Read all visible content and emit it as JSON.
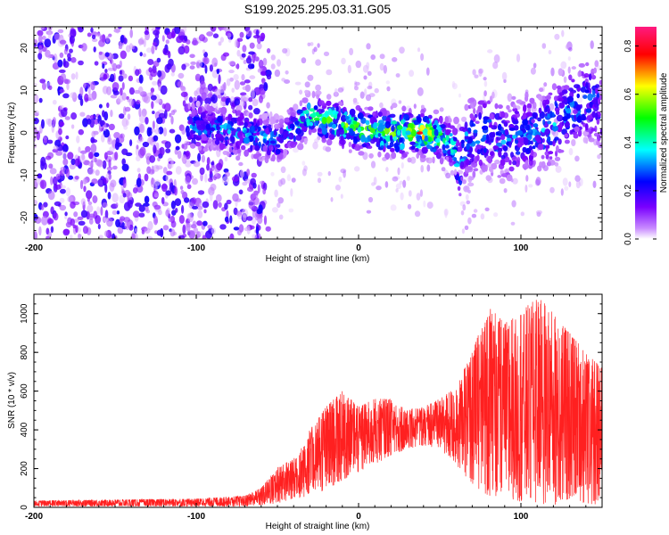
{
  "title": "S199.2025.295.03.31.G05",
  "chart_data": [
    {
      "type": "heatmap",
      "xlabel": "Height of straight line (km)",
      "ylabel": "Frequency (Hz)",
      "xlim": [
        -200,
        150
      ],
      "ylim": [
        -25,
        25
      ],
      "xticks": [
        -200,
        -100,
        0,
        100
      ],
      "yticks": [
        -20,
        -10,
        0,
        10,
        20
      ],
      "colorbar": {
        "label": "Normalized spectral amplitude",
        "range": [
          0,
          0.88
        ],
        "ticks": [
          "0.0",
          "0.2",
          "0.4",
          "0.6",
          "0.8"
        ],
        "colors": [
          "#ffffff",
          "#7a00ff",
          "#0000ff",
          "#00ffff",
          "#00ff00",
          "#ffff00",
          "#ff0000",
          "#ff0080"
        ]
      },
      "ridge": {
        "x": [
          -105,
          -90,
          -70,
          -50,
          -30,
          -20,
          -10,
          0,
          10,
          20,
          30,
          40,
          50,
          55,
          60,
          62,
          65,
          70,
          80,
          90,
          100,
          110,
          120,
          130,
          140,
          150
        ],
        "f": [
          2,
          1,
          0,
          -2,
          4,
          3,
          2,
          1,
          0,
          0,
          0,
          0,
          -1,
          -2,
          -4,
          -8,
          -3,
          -1,
          0,
          -2,
          -1,
          0,
          2,
          6,
          8,
          6
        ],
        "amp": [
          0.35,
          0.35,
          0.4,
          0.35,
          0.5,
          0.55,
          0.6,
          0.6,
          0.6,
          0.65,
          0.75,
          0.8,
          0.6,
          0.5,
          0.45,
          0.4,
          0.4,
          0.35,
          0.35,
          0.35,
          0.35,
          0.35,
          0.4,
          0.35,
          0.35,
          0.3
        ]
      }
    },
    {
      "type": "line",
      "xlabel": "Height of straight line (km)",
      "ylabel": "SNR (10 * v/v)",
      "xlim": [
        -200,
        150
      ],
      "ylim": [
        0,
        1100
      ],
      "xticks": [
        -200,
        -100,
        0,
        100
      ],
      "yticks": [
        0,
        200,
        400,
        600,
        800,
        1000
      ],
      "color": "#ff2020",
      "envelope": {
        "x": [
          -200,
          -100,
          -70,
          -60,
          -50,
          -40,
          -30,
          -20,
          -10,
          0,
          10,
          20,
          30,
          40,
          50,
          60,
          70,
          80,
          90,
          100,
          110,
          120,
          130,
          140,
          150
        ],
        "min": [
          5,
          5,
          5,
          10,
          20,
          40,
          60,
          90,
          140,
          180,
          220,
          270,
          300,
          320,
          300,
          220,
          120,
          60,
          40,
          30,
          20,
          10,
          40,
          20,
          10
        ],
        "max": [
          35,
          45,
          60,
          100,
          210,
          250,
          400,
          520,
          600,
          520,
          560,
          560,
          500,
          520,
          560,
          620,
          800,
          1040,
          950,
          1000,
          1100,
          1000,
          900,
          800,
          720
        ]
      }
    }
  ]
}
